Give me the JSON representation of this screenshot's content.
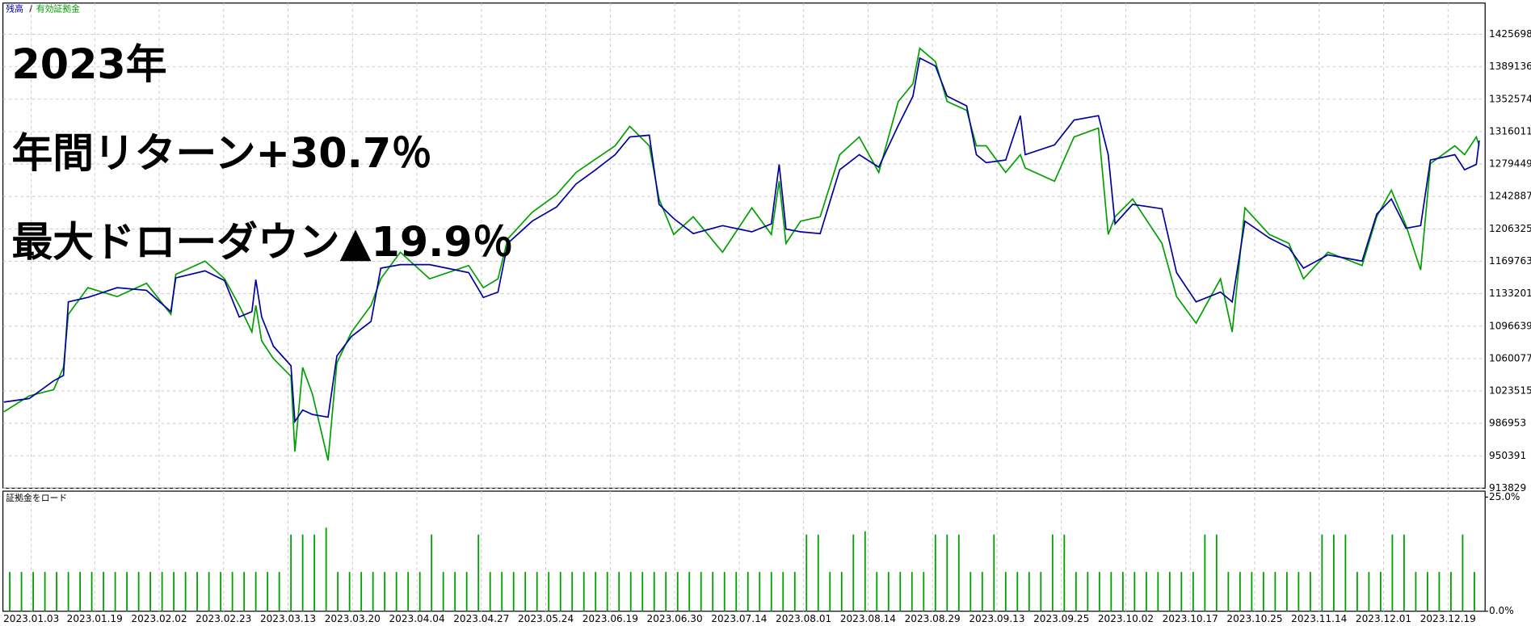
{
  "chart_data": [
    {
      "type": "line",
      "legend_separator": "/",
      "annotations": [
        "2023年",
        "年間リターン+30.7％",
        "最大ドローダウン▲19.9％"
      ],
      "x": [
        4,
        30,
        55,
        65,
        70,
        90,
        120,
        150,
        175,
        180,
        210,
        230,
        245,
        258,
        262,
        268,
        280,
        298,
        302,
        310,
        320,
        336,
        345,
        360,
        380,
        390,
        410,
        440,
        480,
        495,
        510,
        520,
        545,
        570,
        590,
        610,
        630,
        645,
        665,
        675,
        690,
        710,
        740,
        770,
        790,
        798,
        805,
        820,
        840,
        860,
        880,
        900,
        920,
        935,
        942,
        958,
        970,
        990,
        1000,
        1010,
        1030,
        1045,
        1050,
        1080,
        1100,
        1125,
        1135,
        1142,
        1160,
        1190,
        1205,
        1225,
        1250,
        1262,
        1275,
        1300,
        1320,
        1335,
        1360,
        1395,
        1410,
        1425,
        1440,
        1455,
        1465,
        1490,
        1500,
        1512,
        1515
      ],
      "series": [
        {
          "name": "残高",
          "color": "#0000a0",
          "values": [
            1011000,
            1015000,
            1035000,
            1041000,
            1124000,
            1129000,
            1140000,
            1137000,
            1113000,
            1151000,
            1159000,
            1148000,
            1107000,
            1113000,
            1149000,
            1107000,
            1074000,
            1052000,
            989000,
            1002000,
            997000,
            994000,
            1063000,
            1085000,
            1102000,
            1162000,
            1166000,
            1166000,
            1157000,
            1129000,
            1135000,
            1190000,
            1215000,
            1231000,
            1257000,
            1273000,
            1290000,
            1310000,
            1312000,
            1234000,
            1218000,
            1201000,
            1210000,
            1203000,
            1212000,
            1279000,
            1206000,
            1203000,
            1201000,
            1273000,
            1290000,
            1276000,
            1323000,
            1356000,
            1399000,
            1390000,
            1356000,
            1345000,
            1290000,
            1281000,
            1284000,
            1334000,
            1290000,
            1301000,
            1329000,
            1334000,
            1290000,
            1212000,
            1234000,
            1229000,
            1157000,
            1124000,
            1135000,
            1124000,
            1215000,
            1196000,
            1185000,
            1162000,
            1177000,
            1170000,
            1223000,
            1240000,
            1207000,
            1210000,
            1284000,
            1290000,
            1273000,
            1279000,
            1306000
          ]
        },
        {
          "name": "有効証拠金",
          "color": "#00a000",
          "values": [
            1000000,
            1018000,
            1025000,
            1050000,
            1110000,
            1140000,
            1130000,
            1145000,
            1110000,
            1155000,
            1170000,
            1150000,
            1120000,
            1090000,
            1120000,
            1080000,
            1060000,
            1040000,
            955000,
            1050000,
            1020000,
            945000,
            1055000,
            1090000,
            1120000,
            1150000,
            1180000,
            1150000,
            1165000,
            1140000,
            1150000,
            1195000,
            1225000,
            1245000,
            1270000,
            1285000,
            1300000,
            1322000,
            1300000,
            1240000,
            1200000,
            1220000,
            1180000,
            1230000,
            1200000,
            1260000,
            1190000,
            1215000,
            1220000,
            1290000,
            1310000,
            1270000,
            1350000,
            1370000,
            1410000,
            1395000,
            1350000,
            1340000,
            1300000,
            1300000,
            1270000,
            1290000,
            1275000,
            1260000,
            1310000,
            1320000,
            1200000,
            1220000,
            1240000,
            1190000,
            1130000,
            1100000,
            1150000,
            1090000,
            1230000,
            1200000,
            1190000,
            1150000,
            1180000,
            1165000,
            1220000,
            1250000,
            1210000,
            1160000,
            1280000,
            1300000,
            1290000,
            1310000,
            1300000
          ]
        }
      ],
      "xlim": [
        3,
        1521
      ],
      "ylim": [
        913829,
        1461000
      ],
      "yticks": [
        913829,
        950391,
        986953,
        1023515,
        1060077,
        1096639,
        1133201,
        1169763,
        1206325,
        1242887,
        1279449,
        1316011,
        1352574,
        1389136,
        1425698
      ],
      "grid": true
    },
    {
      "type": "bar",
      "title": "証拠金をロード",
      "color": "#00a000",
      "x": [
        10,
        22,
        34,
        46,
        58,
        70,
        82,
        94,
        106,
        118,
        130,
        142,
        154,
        166,
        178,
        190,
        202,
        214,
        226,
        238,
        250,
        262,
        274,
        286,
        298,
        310,
        322,
        334,
        346,
        358,
        370,
        382,
        394,
        406,
        418,
        430,
        442,
        454,
        466,
        478,
        490,
        502,
        514,
        526,
        538,
        550,
        562,
        574,
        586,
        598,
        610,
        622,
        634,
        646,
        658,
        670,
        682,
        694,
        706,
        718,
        730,
        742,
        754,
        766,
        778,
        790,
        802,
        814,
        826,
        838,
        850,
        862,
        874,
        886,
        898,
        910,
        922,
        934,
        946,
        958,
        970,
        982,
        994,
        1006,
        1018,
        1030,
        1042,
        1054,
        1066,
        1078,
        1090,
        1102,
        1114,
        1126,
        1138,
        1150,
        1162,
        1174,
        1186,
        1198,
        1210,
        1222,
        1234,
        1246,
        1258,
        1270,
        1282,
        1294,
        1306,
        1318,
        1330,
        1342,
        1354,
        1366,
        1378,
        1390,
        1402,
        1414,
        1426,
        1438,
        1450,
        1462,
        1474,
        1486,
        1498,
        1510
      ],
      "values": [
        8.6,
        8.6,
        8.6,
        8.6,
        8.6,
        8.6,
        8.6,
        8.6,
        8.6,
        8.6,
        8.6,
        8.6,
        8.6,
        8.6,
        8.6,
        8.6,
        8.6,
        8.6,
        8.6,
        8.6,
        8.6,
        8.6,
        8.6,
        8.6,
        16.8,
        16.8,
        16.8,
        18.3,
        8.6,
        8.6,
        8.6,
        8.6,
        8.6,
        8.6,
        8.6,
        8.6,
        16.8,
        8.6,
        8.6,
        8.6,
        16.8,
        8.6,
        8.6,
        8.6,
        8.6,
        8.6,
        8.6,
        8.6,
        8.6,
        8.6,
        8.6,
        8.6,
        8.6,
        8.6,
        8.6,
        8.6,
        8.6,
        8.6,
        8.6,
        8.6,
        8.6,
        8.6,
        8.6,
        8.6,
        8.6,
        8.6,
        8.6,
        8.6,
        16.8,
        16.8,
        8.6,
        8.6,
        16.8,
        17.5,
        8.6,
        8.6,
        8.6,
        8.6,
        8.6,
        16.8,
        16.8,
        16.8,
        8.6,
        8.6,
        16.8,
        8.6,
        8.6,
        8.6,
        8.6,
        16.8,
        16.8,
        8.6,
        8.6,
        8.6,
        8.6,
        8.6,
        8.6,
        8.6,
        8.6,
        8.6,
        8.6,
        8.6,
        16.8,
        16.8,
        8.6,
        8.6,
        8.6,
        8.6,
        8.6,
        8.6,
        8.6,
        8.6,
        16.8,
        16.8,
        16.8,
        8.6,
        8.6,
        8.6,
        16.8,
        16.8,
        8.6,
        8.6,
        8.6,
        8.6,
        16.8,
        8.6
      ],
      "xlim": [
        3,
        1521
      ],
      "ylim": [
        0,
        26.3
      ],
      "yticks": [
        {
          "value": 25,
          "label": "25.0%"
        },
        {
          "value": 0,
          "label": "0.0%"
        }
      ],
      "xticks": [
        {
          "value": 32,
          "label": "2023.01.03"
        },
        {
          "value": 97,
          "label": "2023.01.19"
        },
        {
          "value": 163,
          "label": "2023.02.02"
        },
        {
          "value": 229,
          "label": "2023.02.23"
        },
        {
          "value": 295,
          "label": "2023.03.13"
        },
        {
          "value": 361,
          "label": "2023.03.20"
        },
        {
          "value": 427,
          "label": "2023.04.04"
        },
        {
          "value": 493,
          "label": "2023.04.27"
        },
        {
          "value": 559,
          "label": "2023.05.24"
        },
        {
          "value": 625,
          "label": "2023.06.19"
        },
        {
          "value": 691,
          "label": "2023.06.30"
        },
        {
          "value": 757,
          "label": "2023.07.14"
        },
        {
          "value": 823,
          "label": "2023.08.01"
        },
        {
          "value": 889,
          "label": "2023.08.14"
        },
        {
          "value": 955,
          "label": "2023.08.29"
        },
        {
          "value": 1021,
          "label": "2023.09.13"
        },
        {
          "value": 1087,
          "label": "2023.09.25"
        },
        {
          "value": 1153,
          "label": "2023.10.02"
        },
        {
          "value": 1219,
          "label": "2023.10.17"
        },
        {
          "value": 1285,
          "label": "2023.10.25"
        },
        {
          "value": 1351,
          "label": "2023.11.14"
        },
        {
          "value": 1417,
          "label": "2023.12.01"
        },
        {
          "value": 1483,
          "label": "2023.12.19"
        }
      ]
    }
  ]
}
